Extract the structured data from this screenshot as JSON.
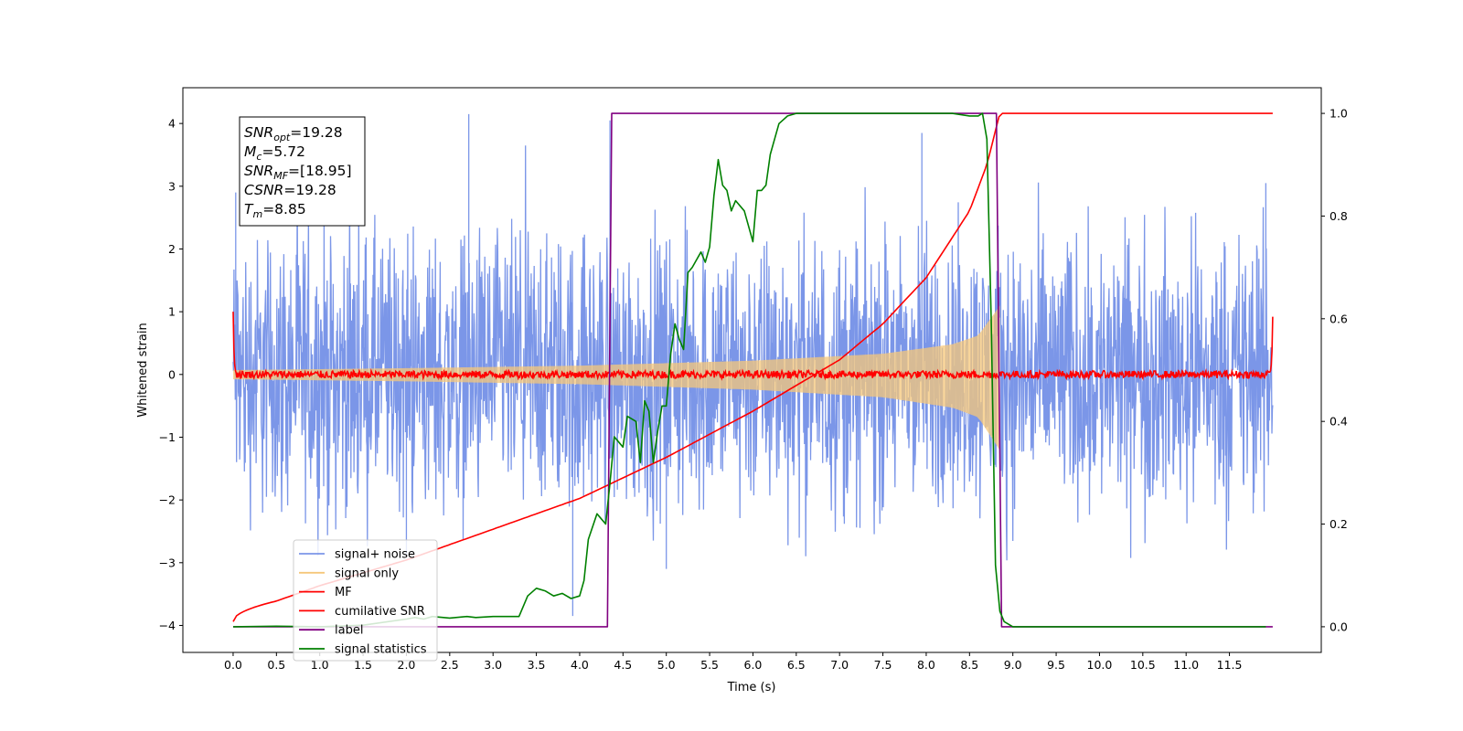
{
  "chart_data": {
    "type": "line",
    "title": "",
    "xlabel": "Time (s)",
    "ylabel": "Whitened strain",
    "xlim": [
      -0.58,
      12.56
    ],
    "ylim_left": [
      -4.43,
      4.57
    ],
    "ylim_right": [
      -0.05,
      1.05
    ],
    "x_ticks": [
      0.0,
      0.5,
      1.0,
      1.5,
      2.0,
      2.5,
      3.0,
      3.5,
      4.0,
      4.5,
      5.0,
      5.5,
      6.0,
      6.5,
      7.0,
      7.5,
      8.0,
      8.5,
      9.0,
      9.5,
      10.0,
      10.5,
      11.0,
      11.5
    ],
    "x_tick_labels": [
      "0.0",
      "0.5",
      "1.0",
      "1.5",
      "2.0",
      "2.5",
      "3.0",
      "3.5",
      "4.0",
      "4.5",
      "5.0",
      "5.5",
      "6.0",
      "6.5",
      "7.0",
      "7.5",
      "8.0",
      "8.5",
      "9.0",
      "9.5",
      "10.0",
      "10.5",
      "11.0",
      "11.5"
    ],
    "y_left_ticks": [
      -4,
      -3,
      -2,
      -1,
      0,
      1,
      2,
      3,
      4
    ],
    "y_left_tick_labels": [
      "−4",
      "−3",
      "−2",
      "−1",
      "0",
      "1",
      "2",
      "3",
      "4"
    ],
    "y_right_ticks": [
      0.0,
      0.2,
      0.4,
      0.6,
      0.8,
      1.0
    ],
    "y_right_tick_labels": [
      "0.0",
      "0.2",
      "0.4",
      "0.6",
      "0.8",
      "1.0"
    ],
    "grid": false,
    "legend_position": "lower-left",
    "series": [
      {
        "name": "signal+ noise",
        "axis": "left",
        "color": "#7b96e8",
        "x_range": [
          0.0,
          12.0
        ],
        "noise_amplitude": 0.9,
        "peak_range": [
          -3.85,
          4.15
        ]
      },
      {
        "name": "signal only",
        "axis": "left",
        "color": "#f5c77a",
        "x_range": [
          0.0,
          8.85
        ],
        "envelope": {
          "x": [
            0.0,
            2.0,
            4.0,
            6.0,
            7.5,
            8.3,
            8.6,
            8.8,
            8.85
          ],
          "amplitude": [
            0.07,
            0.1,
            0.14,
            0.22,
            0.33,
            0.48,
            0.62,
            1.0,
            1.1
          ]
        }
      },
      {
        "name": "MF",
        "axis": "left",
        "color": "#ff0000",
        "x_range": [
          0.0,
          12.0
        ],
        "noise_amplitude": 0.06,
        "end_spikes": [
          1.0,
          0.92
        ]
      },
      {
        "name": "cumilative SNR",
        "axis": "right",
        "color": "#ff0000",
        "x": [
          0.0,
          0.5,
          1.0,
          2.0,
          3.0,
          4.0,
          5.0,
          6.0,
          7.0,
          7.5,
          8.0,
          8.5,
          8.7,
          8.85,
          12.0
        ],
        "values": [
          0.01,
          0.05,
          0.08,
          0.13,
          0.19,
          0.25,
          0.33,
          0.42,
          0.52,
          0.59,
          0.68,
          0.81,
          0.9,
          1.0,
          1.0
        ]
      },
      {
        "name": "label",
        "axis": "right",
        "color": "#800080",
        "x": [
          0.0,
          4.32,
          4.37,
          8.81,
          8.87,
          12.0
        ],
        "values": [
          0.0,
          0.0,
          1.0,
          1.0,
          0.0,
          0.0
        ]
      },
      {
        "name": "signal statistics",
        "axis": "right",
        "color": "#008000",
        "x": [
          0.0,
          0.5,
          1.0,
          1.5,
          2.0,
          2.1,
          2.2,
          2.3,
          2.5,
          2.7,
          2.8,
          3.0,
          3.3,
          3.4,
          3.5,
          3.6,
          3.7,
          3.8,
          3.9,
          4.0,
          4.05,
          4.1,
          4.2,
          4.3,
          4.35,
          4.4,
          4.5,
          4.55,
          4.65,
          4.7,
          4.75,
          4.8,
          4.85,
          4.9,
          4.95,
          5.0,
          5.05,
          5.1,
          5.15,
          5.2,
          5.25,
          5.3,
          5.4,
          5.45,
          5.5,
          5.55,
          5.6,
          5.65,
          5.7,
          5.75,
          5.8,
          5.9,
          6.0,
          6.05,
          6.1,
          6.15,
          6.2,
          6.3,
          6.4,
          6.5,
          6.6,
          6.7,
          7.0,
          8.0,
          8.3,
          8.5,
          8.6,
          8.65,
          8.7,
          8.75,
          8.8,
          8.85,
          8.9,
          9.0,
          10.0,
          11.0,
          11.92
        ],
        "values": [
          0.0,
          0.001,
          0.0,
          0.003,
          0.015,
          0.018,
          0.015,
          0.02,
          0.017,
          0.02,
          0.018,
          0.02,
          0.02,
          0.06,
          0.075,
          0.07,
          0.06,
          0.065,
          0.055,
          0.06,
          0.09,
          0.17,
          0.22,
          0.2,
          0.28,
          0.37,
          0.35,
          0.41,
          0.4,
          0.32,
          0.44,
          0.42,
          0.32,
          0.38,
          0.43,
          0.43,
          0.53,
          0.59,
          0.56,
          0.54,
          0.69,
          0.7,
          0.73,
          0.71,
          0.74,
          0.84,
          0.91,
          0.86,
          0.85,
          0.81,
          0.83,
          0.81,
          0.75,
          0.85,
          0.85,
          0.86,
          0.92,
          0.98,
          0.995,
          1.0,
          1.0,
          1.0,
          1.0,
          1.0,
          1.0,
          0.995,
          0.995,
          1.0,
          0.95,
          0.6,
          0.12,
          0.03,
          0.01,
          0.0,
          0.0,
          0.0,
          0.0
        ]
      }
    ]
  },
  "annotation": {
    "lines": [
      {
        "sym": "SNR",
        "sub": "opt",
        "val": "=19.28"
      },
      {
        "sym": "M",
        "sub": "c",
        "val": "=5.72"
      },
      {
        "sym": "SNR",
        "sub": "MF",
        "val": "=[18.95]"
      },
      {
        "sym": "CSNR",
        "sub": "",
        "val": "=19.28"
      },
      {
        "sym": "T",
        "sub": "m",
        "val": "=8.85"
      }
    ]
  },
  "legend": {
    "items": [
      {
        "label": "signal+ noise",
        "color": "#7b96e8"
      },
      {
        "label": "signal only",
        "color": "#f5c77a"
      },
      {
        "label": "MF",
        "color": "#ff0000"
      },
      {
        "label": "cumilative SNR",
        "color": "#ff0000"
      },
      {
        "label": "label",
        "color": "#800080"
      },
      {
        "label": "signal statistics",
        "color": "#008000"
      }
    ]
  }
}
